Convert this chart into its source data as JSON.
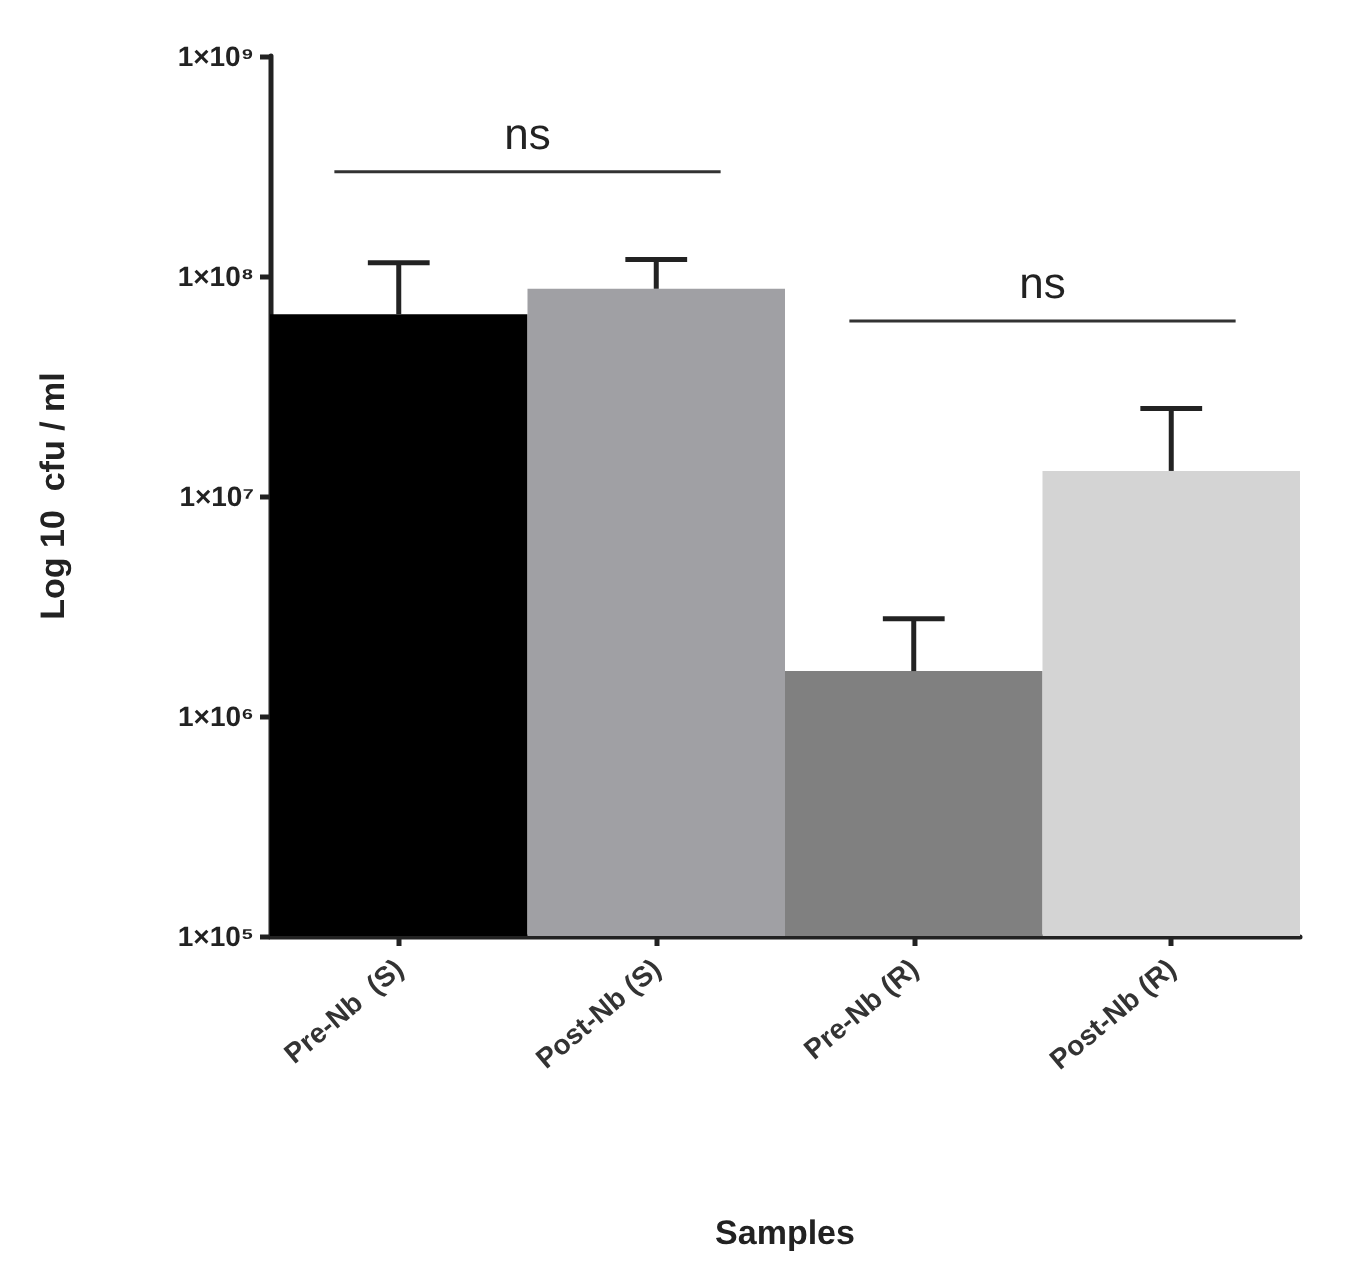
{
  "chart_data": {
    "type": "bar",
    "categories": [
      "Pre-Nb  (S)",
      "Post-Nb (S)",
      "Pre-Nb (R)",
      "Post-Nb (R)"
    ],
    "values": [
      67000000,
      87500000,
      1600000,
      13000000
    ],
    "colors": [
      "#000000",
      "#a0a0a4",
      "#808080",
      "#d4d4d4"
    ],
    "errors": [
      [
        67000000,
        115000000
      ],
      [
        87500000,
        119000000
      ],
      [
        1600000,
        2770000
      ],
      [
        13000000,
        25000000
      ]
    ],
    "xlabel": "Samples",
    "ylabel": "Log 10  cfu / ml",
    "log": "y",
    "ylim": [
      100000,
      1000000000
    ],
    "yticks": [
      {
        "value": 100000,
        "label": "1×10⁵"
      },
      {
        "value": 1000000,
        "label": "1×10⁶"
      },
      {
        "value": 10000000,
        "label": "1×10⁷"
      },
      {
        "value": 100000000,
        "label": "1×10⁸"
      },
      {
        "value": 1000000000,
        "label": "1×10⁹"
      }
    ],
    "annotations": [
      "ns",
      "ns"
    ],
    "grid": false
  }
}
